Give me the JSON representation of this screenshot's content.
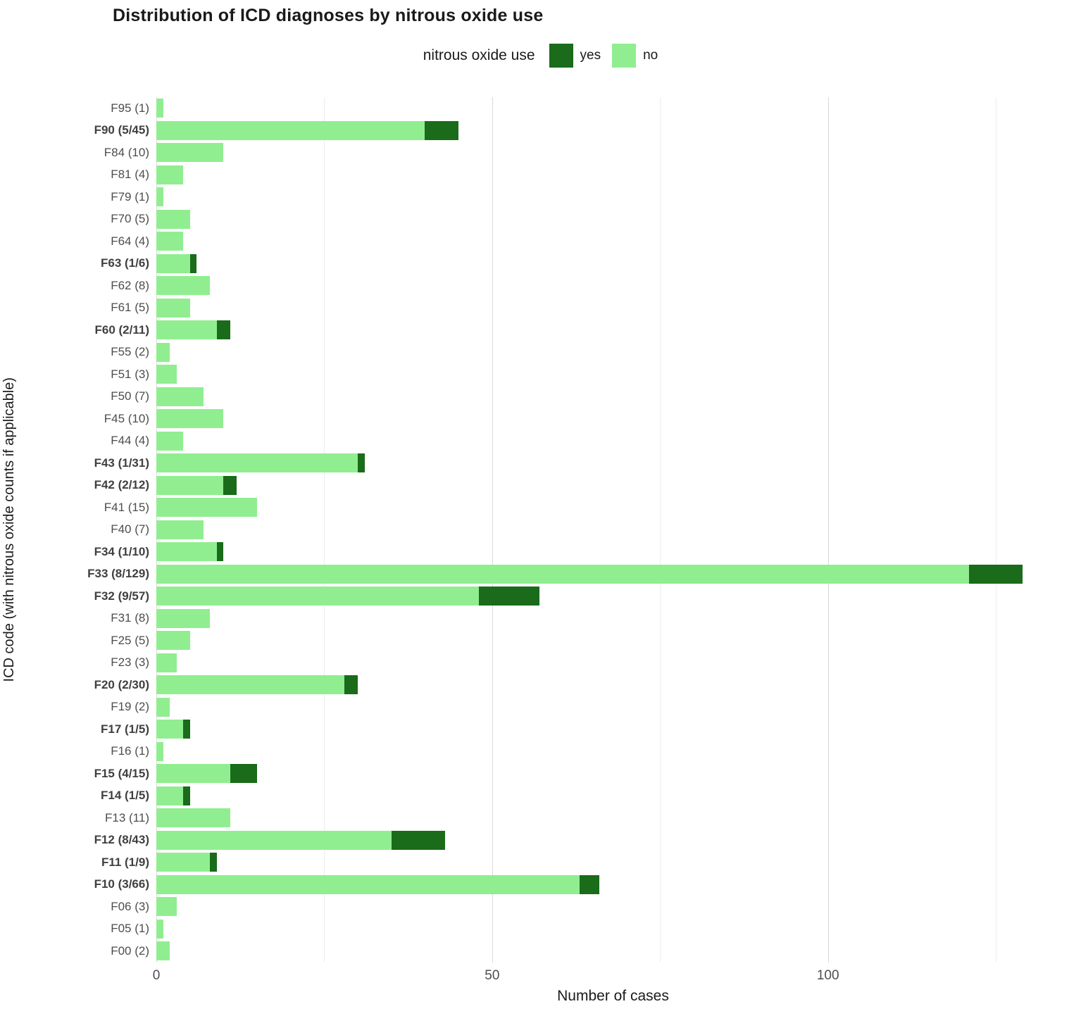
{
  "title": "Distribution of ICD diagnoses by nitrous oxide use",
  "legend": {
    "title": "nitrous oxide use",
    "entries": [
      {
        "label": "yes",
        "color": "#1a6b1a"
      },
      {
        "label": "no",
        "color": "#90ee90"
      }
    ]
  },
  "axes": {
    "x_label": "Number of cases",
    "y_label": "ICD code (with nitrous oxide counts if applicable)",
    "x_ticks": [
      0,
      50,
      100
    ],
    "x_minor_ticks": [
      25,
      75,
      125
    ],
    "x_max": 136
  },
  "chart_data": {
    "type": "bar",
    "orientation": "horizontal",
    "stacked": true,
    "title": "Distribution of ICD diagnoses by nitrous oxide use",
    "xlabel": "Number of cases",
    "ylabel": "ICD code (with nitrous oxide counts if applicable)",
    "xlim": [
      0,
      136
    ],
    "x_ticks": [
      0,
      50,
      100
    ],
    "grid": "vertical-only",
    "legend_position": "top",
    "series_names": [
      "yes",
      "no"
    ],
    "series_colors": {
      "yes": "#1a6b1a",
      "no": "#90ee90"
    },
    "rows": [
      {
        "label": "F95 (1)",
        "yes": 0,
        "no": 1,
        "bold": false
      },
      {
        "label": "F90 (5/45)",
        "yes": 5,
        "no": 40,
        "bold": true
      },
      {
        "label": "F84 (10)",
        "yes": 0,
        "no": 10,
        "bold": false
      },
      {
        "label": "F81 (4)",
        "yes": 0,
        "no": 4,
        "bold": false
      },
      {
        "label": "F79 (1)",
        "yes": 0,
        "no": 1,
        "bold": false
      },
      {
        "label": "F70 (5)",
        "yes": 0,
        "no": 5,
        "bold": false
      },
      {
        "label": "F64 (4)",
        "yes": 0,
        "no": 4,
        "bold": false
      },
      {
        "label": "F63 (1/6)",
        "yes": 1,
        "no": 5,
        "bold": true
      },
      {
        "label": "F62 (8)",
        "yes": 0,
        "no": 8,
        "bold": false
      },
      {
        "label": "F61 (5)",
        "yes": 0,
        "no": 5,
        "bold": false
      },
      {
        "label": "F60 (2/11)",
        "yes": 2,
        "no": 9,
        "bold": true
      },
      {
        "label": "F55 (2)",
        "yes": 0,
        "no": 2,
        "bold": false
      },
      {
        "label": "F51 (3)",
        "yes": 0,
        "no": 3,
        "bold": false
      },
      {
        "label": "F50 (7)",
        "yes": 0,
        "no": 7,
        "bold": false
      },
      {
        "label": "F45 (10)",
        "yes": 0,
        "no": 10,
        "bold": false
      },
      {
        "label": "F44 (4)",
        "yes": 0,
        "no": 4,
        "bold": false
      },
      {
        "label": "F43 (1/31)",
        "yes": 1,
        "no": 30,
        "bold": true
      },
      {
        "label": "F42 (2/12)",
        "yes": 2,
        "no": 10,
        "bold": true
      },
      {
        "label": "F41 (15)",
        "yes": 0,
        "no": 15,
        "bold": false
      },
      {
        "label": "F40 (7)",
        "yes": 0,
        "no": 7,
        "bold": false
      },
      {
        "label": "F34 (1/10)",
        "yes": 1,
        "no": 9,
        "bold": true
      },
      {
        "label": "F33 (8/129)",
        "yes": 8,
        "no": 121,
        "bold": true
      },
      {
        "label": "F32 (9/57)",
        "yes": 9,
        "no": 48,
        "bold": true
      },
      {
        "label": "F31 (8)",
        "yes": 0,
        "no": 8,
        "bold": false
      },
      {
        "label": "F25 (5)",
        "yes": 0,
        "no": 5,
        "bold": false
      },
      {
        "label": "F23 (3)",
        "yes": 0,
        "no": 3,
        "bold": false
      },
      {
        "label": "F20 (2/30)",
        "yes": 2,
        "no": 28,
        "bold": true
      },
      {
        "label": "F19 (2)",
        "yes": 0,
        "no": 2,
        "bold": false
      },
      {
        "label": "F17 (1/5)",
        "yes": 1,
        "no": 4,
        "bold": true
      },
      {
        "label": "F16 (1)",
        "yes": 0,
        "no": 1,
        "bold": false
      },
      {
        "label": "F15 (4/15)",
        "yes": 4,
        "no": 11,
        "bold": true
      },
      {
        "label": "F14 (1/5)",
        "yes": 1,
        "no": 4,
        "bold": true
      },
      {
        "label": "F13 (11)",
        "yes": 0,
        "no": 11,
        "bold": false
      },
      {
        "label": "F12 (8/43)",
        "yes": 8,
        "no": 35,
        "bold": true
      },
      {
        "label": "F11 (1/9)",
        "yes": 1,
        "no": 8,
        "bold": true
      },
      {
        "label": "F10 (3/66)",
        "yes": 3,
        "no": 63,
        "bold": true
      },
      {
        "label": "F06 (3)",
        "yes": 0,
        "no": 3,
        "bold": false
      },
      {
        "label": "F05 (1)",
        "yes": 0,
        "no": 1,
        "bold": false
      },
      {
        "label": "F00 (2)",
        "yes": 0,
        "no": 2,
        "bold": false
      }
    ]
  }
}
